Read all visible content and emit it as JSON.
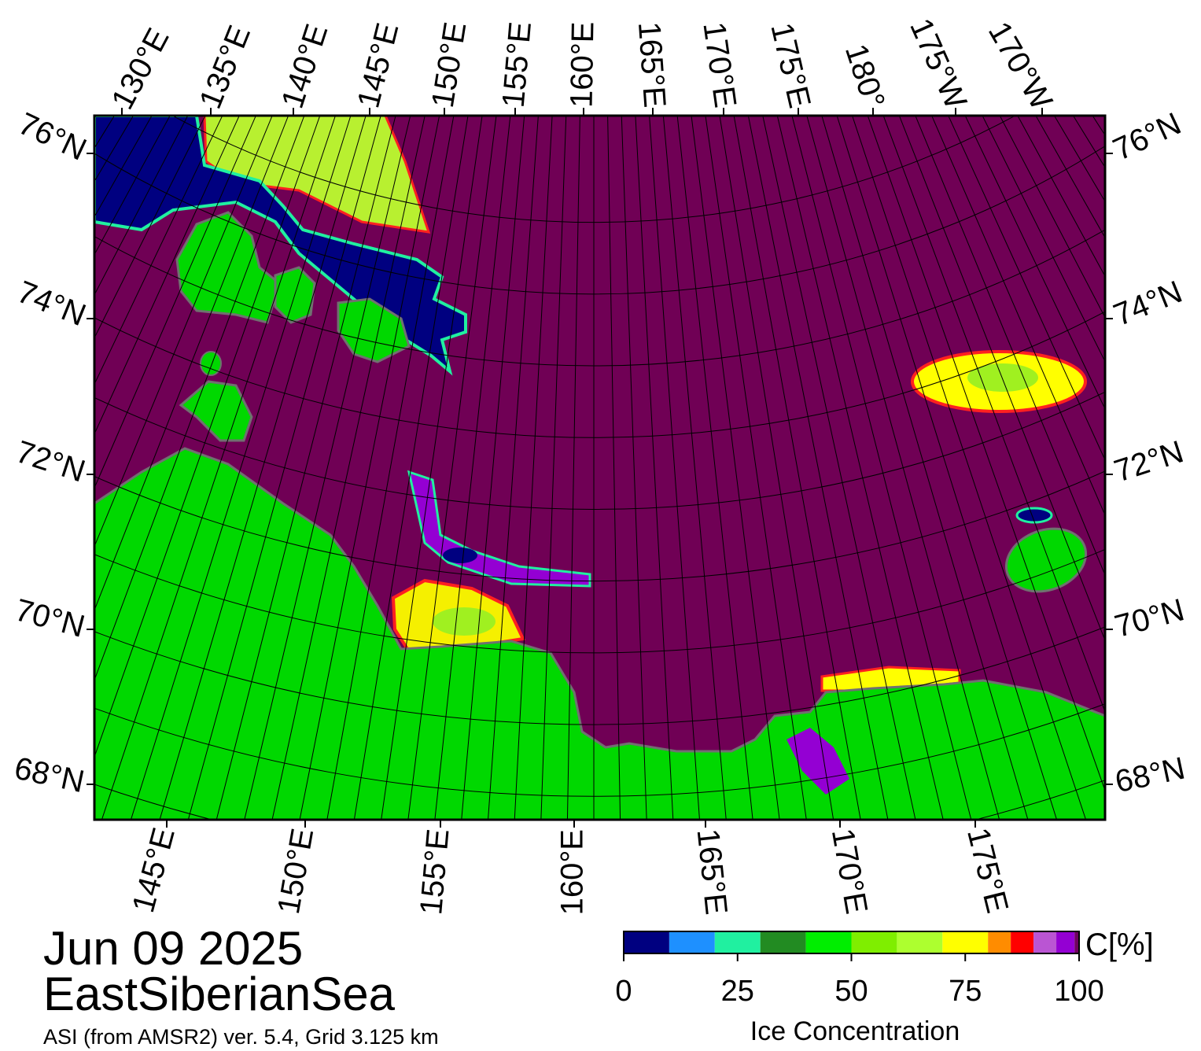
{
  "map": {
    "top_labels": [
      "130°E",
      "135°E",
      "140°E",
      "145°E",
      "150°E",
      "155°E",
      "160°E",
      "165°E",
      "170°E",
      "175°E",
      "180°",
      "175°W",
      "170°W"
    ],
    "bottom_labels": [
      "145°E",
      "150°E",
      "155°E",
      "160°E",
      "165°E",
      "170°E",
      "175°E"
    ],
    "left_labels": [
      "76°N",
      "74°N",
      "72°N",
      "70°N",
      "68°N"
    ],
    "right_labels": [
      "76°N",
      "74°N",
      "72°N",
      "70°N",
      "68°N"
    ]
  },
  "date": "Jun 09 2025",
  "region": "EastSiberianSea",
  "source": "ASI (from AMSR2) ver. 5.4,  Grid 3.125 km",
  "colorbar": {
    "unit": "C[%]",
    "title": "Ice Concentration",
    "ticks": [
      0,
      25,
      50,
      75,
      100
    ],
    "lim": [
      0,
      100
    ],
    "bounds": [
      0,
      10,
      20,
      30,
      40,
      50,
      60,
      70,
      80,
      85,
      90,
      95,
      99,
      100
    ],
    "colors": [
      "#000080",
      "#1e90ff",
      "#20f0a0",
      "#228b22",
      "#00ee00",
      "#7fee00",
      "#adff2f",
      "#ffff00",
      "#ff8c00",
      "#ff0000",
      "#ba55d3",
      "#9400d3",
      "#700060"
    ]
  }
}
